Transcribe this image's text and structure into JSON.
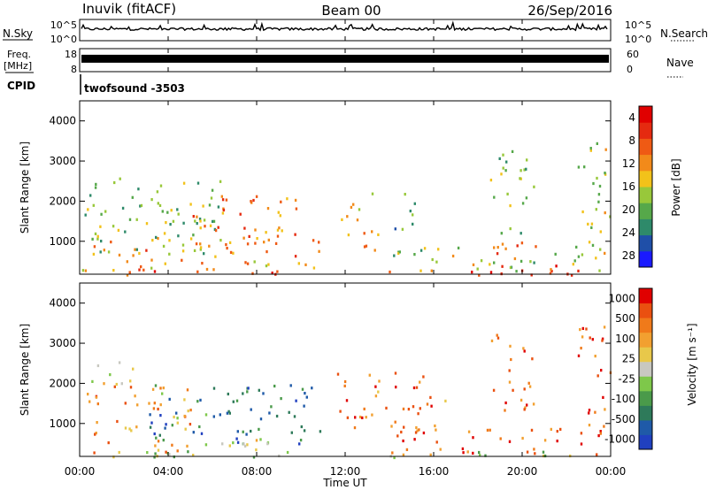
{
  "header": {
    "title": "Inuvik (fitACF)",
    "beam": "Beam 00",
    "date": "26/Sep/2016"
  },
  "strips": {
    "nsky": {
      "label": "N.Sky",
      "tick_top": "10^5",
      "tick_bottom": "10^0"
    },
    "nsearch": {
      "label": "N.Search",
      "tick_top": "10^5",
      "tick_bottom": "10^0"
    },
    "freq": {
      "label_line1": "Freq.",
      "label_line2": "[MHz]",
      "tick_top": "18",
      "tick_bottom": "8"
    },
    "nave": {
      "label": "Nave",
      "tick_top": "60",
      "tick_bottom": "0"
    },
    "cpid": {
      "label": "CPID",
      "value": "twofsound -3503"
    }
  },
  "x_axis": {
    "label": "Time UT",
    "ticks": [
      "00:00",
      "04:00",
      "08:00",
      "12:00",
      "16:00",
      "20:00",
      "00:00"
    ]
  },
  "chart_data": [
    {
      "type": "heatmap",
      "panel": "power",
      "ylabel": "Slant Range [km]",
      "yticks": [
        "1000",
        "2000",
        "3000",
        "4000"
      ],
      "ylim": [
        180,
        4500
      ],
      "xlim": [
        0,
        24
      ],
      "colorbar": {
        "label": "Power [dB]",
        "ticks": [
          "4",
          "8",
          "12",
          "16",
          "20",
          "24",
          "28"
        ],
        "colors": [
          "#1a1aff",
          "#1f4fa8",
          "#2e8a6a",
          "#56a84a",
          "#98c83a",
          "#f2c21a",
          "#f28a1a",
          "#ef5a14",
          "#e52a10",
          "#e00000"
        ]
      },
      "regions": [
        {
          "t0": 0.1,
          "t1": 24,
          "r0": 180,
          "r1": 330,
          "level": 0.8
        },
        {
          "t0": 0.1,
          "t1": 11.5,
          "r0": 300,
          "r1": 1200,
          "level": 0.65
        },
        {
          "t0": 0.2,
          "t1": 6.5,
          "r0": 700,
          "r1": 2600,
          "level": 0.4
        },
        {
          "t0": 5,
          "t1": 10,
          "r0": 800,
          "r1": 2200,
          "level": 0.7
        },
        {
          "t0": 11.8,
          "t1": 13.5,
          "r0": 800,
          "r1": 2300,
          "level": 0.6
        },
        {
          "t0": 14,
          "t1": 15.2,
          "r0": 1300,
          "r1": 2300,
          "level": 0.35
        },
        {
          "t0": 14,
          "t1": 24,
          "r0": 280,
          "r1": 900,
          "level": 0.45
        },
        {
          "t0": 18.5,
          "t1": 21.5,
          "r0": 300,
          "r1": 1000,
          "level": 0.8
        },
        {
          "t0": 18.5,
          "t1": 20.5,
          "r0": 1200,
          "r1": 3300,
          "level": 0.4
        },
        {
          "t0": 22.5,
          "t1": 24,
          "r0": 600,
          "r1": 3600,
          "level": 0.45
        }
      ]
    },
    {
      "type": "heatmap",
      "panel": "velocity",
      "ylabel": "Slant Range [km]",
      "yticks": [
        "1000",
        "2000",
        "3000",
        "4000"
      ],
      "ylim": [
        180,
        4500
      ],
      "xlim": [
        0,
        24
      ],
      "colorbar": {
        "label": "Velocity [m s⁻¹]",
        "ticks": [
          "1000",
          "500",
          "100",
          "25",
          "-25",
          "-100",
          "-500",
          "-1000"
        ],
        "colors": [
          "#2040c0",
          "#1f5aa8",
          "#2e7a5a",
          "#4a9a4a",
          "#7ec84a",
          "#c8c8c0",
          "#e8c84a",
          "#f2a030",
          "#f07a1a",
          "#ea5010",
          "#e00000"
        ]
      },
      "regions": [
        {
          "t0": 0.1,
          "t1": 24,
          "r0": 180,
          "r1": 330,
          "level": 0.45
        },
        {
          "t0": 0.1,
          "t1": 5,
          "r0": 300,
          "r1": 2000,
          "level": 0.75
        },
        {
          "t0": 0.2,
          "t1": 2.5,
          "r0": 2000,
          "r1": 2700,
          "level": 0.5
        },
        {
          "t0": 3,
          "t1": 11,
          "r0": 500,
          "r1": 2000,
          "level": 0.2
        },
        {
          "t0": 4,
          "t1": 9,
          "r0": 200,
          "r1": 700,
          "level": 0.5
        },
        {
          "t0": 11.5,
          "t1": 16.5,
          "r0": 800,
          "r1": 2300,
          "level": 0.8
        },
        {
          "t0": 14,
          "t1": 24,
          "r0": 250,
          "r1": 900,
          "level": 0.8
        },
        {
          "t0": 18.5,
          "t1": 20.5,
          "r0": 1300,
          "r1": 3300,
          "level": 0.82
        },
        {
          "t0": 22.5,
          "t1": 24,
          "r0": 600,
          "r1": 3500,
          "level": 0.82
        }
      ]
    }
  ],
  "noise_series": {
    "nsky_level": 0.55,
    "freq_level": 0.35
  }
}
